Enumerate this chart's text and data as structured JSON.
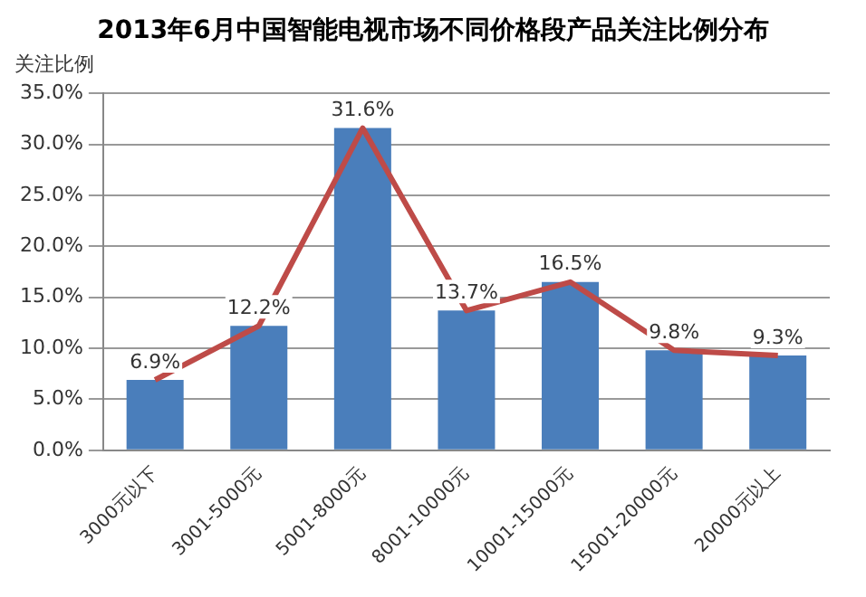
{
  "chart_data": {
    "type": "bar",
    "title": "2013年6月中国智能电视市场不同价格段产品关注比例分布",
    "ylabel": "关注比例",
    "categories": [
      "3000元以下",
      "3001-5000元",
      "5001-8000元",
      "8001-10000元",
      "10001-15000元",
      "15001-20000元",
      "20000元以上"
    ],
    "series": [
      {
        "color": "#4a7ebb",
        "values": [
          6.9,
          12.2,
          31.6,
          13.7,
          16.5,
          9.8,
          9.3
        ],
        "value_labels": [
          "6.9%",
          "12.2%",
          "31.6%",
          "13.7%",
          "16.5%",
          "9.8%",
          "9.3%"
        ]
      },
      {
        "type": "line",
        "color": "#be4b48",
        "values": [
          6.9,
          12.2,
          31.6,
          13.7,
          16.5,
          9.8,
          9.3
        ]
      }
    ],
    "ylim": [
      0,
      35
    ],
    "yticks": [
      {
        "value": 0,
        "label": "0.0%"
      },
      {
        "value": 5,
        "label": "5.0%"
      },
      {
        "value": 10,
        "label": "10.0%"
      },
      {
        "value": 15,
        "label": "15.0%"
      },
      {
        "value": 20,
        "label": "20.0%"
      },
      {
        "value": 25,
        "label": "25.0%"
      },
      {
        "value": 30,
        "label": "30.0%"
      },
      {
        "value": 35,
        "label": "35.0%"
      }
    ],
    "grid": "y",
    "legend": false,
    "marker": "none"
  }
}
